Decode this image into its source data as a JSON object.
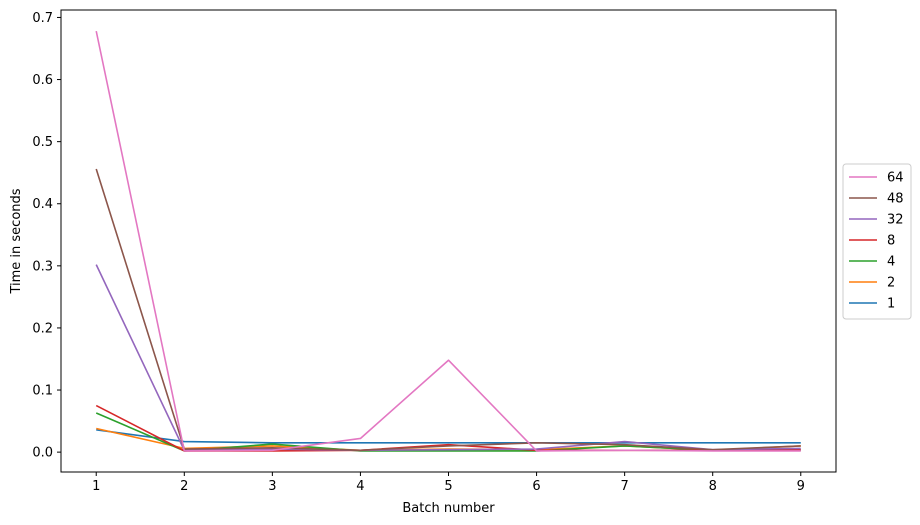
{
  "chart_data": {
    "type": "line",
    "title": "",
    "xlabel": "Batch number",
    "ylabel": "Time in seconds",
    "x": [
      1,
      2,
      3,
      4,
      5,
      6,
      7,
      8,
      9
    ],
    "xlim": [
      0.6,
      9.4
    ],
    "ylim": [
      -0.032,
      0.712
    ],
    "xticks": [
      1,
      2,
      3,
      4,
      5,
      6,
      7,
      8,
      9
    ],
    "yticks": [
      0.0,
      0.1,
      0.2,
      0.3,
      0.4,
      0.5,
      0.6,
      0.7
    ],
    "ytick_labels": [
      "0.0",
      "0.1",
      "0.2",
      "0.3",
      "0.4",
      "0.5",
      "0.6",
      "0.7"
    ],
    "grid": false,
    "legend_position": "center-right outside",
    "series": [
      {
        "name": "64",
        "color": "#e377c2",
        "values": [
          0.678,
          0.002,
          0.003,
          0.022,
          0.148,
          0.002,
          0.003,
          0.002,
          0.002
        ]
      },
      {
        "name": "48",
        "color": "#8c564b",
        "values": [
          0.456,
          0.005,
          0.007,
          0.003,
          0.01,
          0.015,
          0.012,
          0.004,
          0.01
        ]
      },
      {
        "name": "32",
        "color": "#9467bd",
        "values": [
          0.302,
          0.003,
          0.005,
          0.003,
          0.004,
          0.005,
          0.017,
          0.004,
          0.006
        ]
      },
      {
        "name": "8",
        "color": "#d62728",
        "values": [
          0.075,
          0.002,
          0.002,
          0.003,
          0.012,
          0.003,
          0.003,
          0.003,
          0.004
        ]
      },
      {
        "name": "4",
        "color": "#2ca02c",
        "values": [
          0.063,
          0.002,
          0.013,
          0.002,
          0.002,
          0.002,
          0.01,
          0.003,
          0.003
        ]
      },
      {
        "name": "2",
        "color": "#ff7f0e",
        "values": [
          0.038,
          0.006,
          0.01,
          0.003,
          0.005,
          0.004,
          0.01,
          0.003,
          0.01
        ]
      },
      {
        "name": "1",
        "color": "#1f77b4",
        "values": [
          0.036,
          0.017,
          0.015,
          0.015,
          0.015,
          0.015,
          0.015,
          0.015,
          0.015
        ]
      }
    ]
  }
}
